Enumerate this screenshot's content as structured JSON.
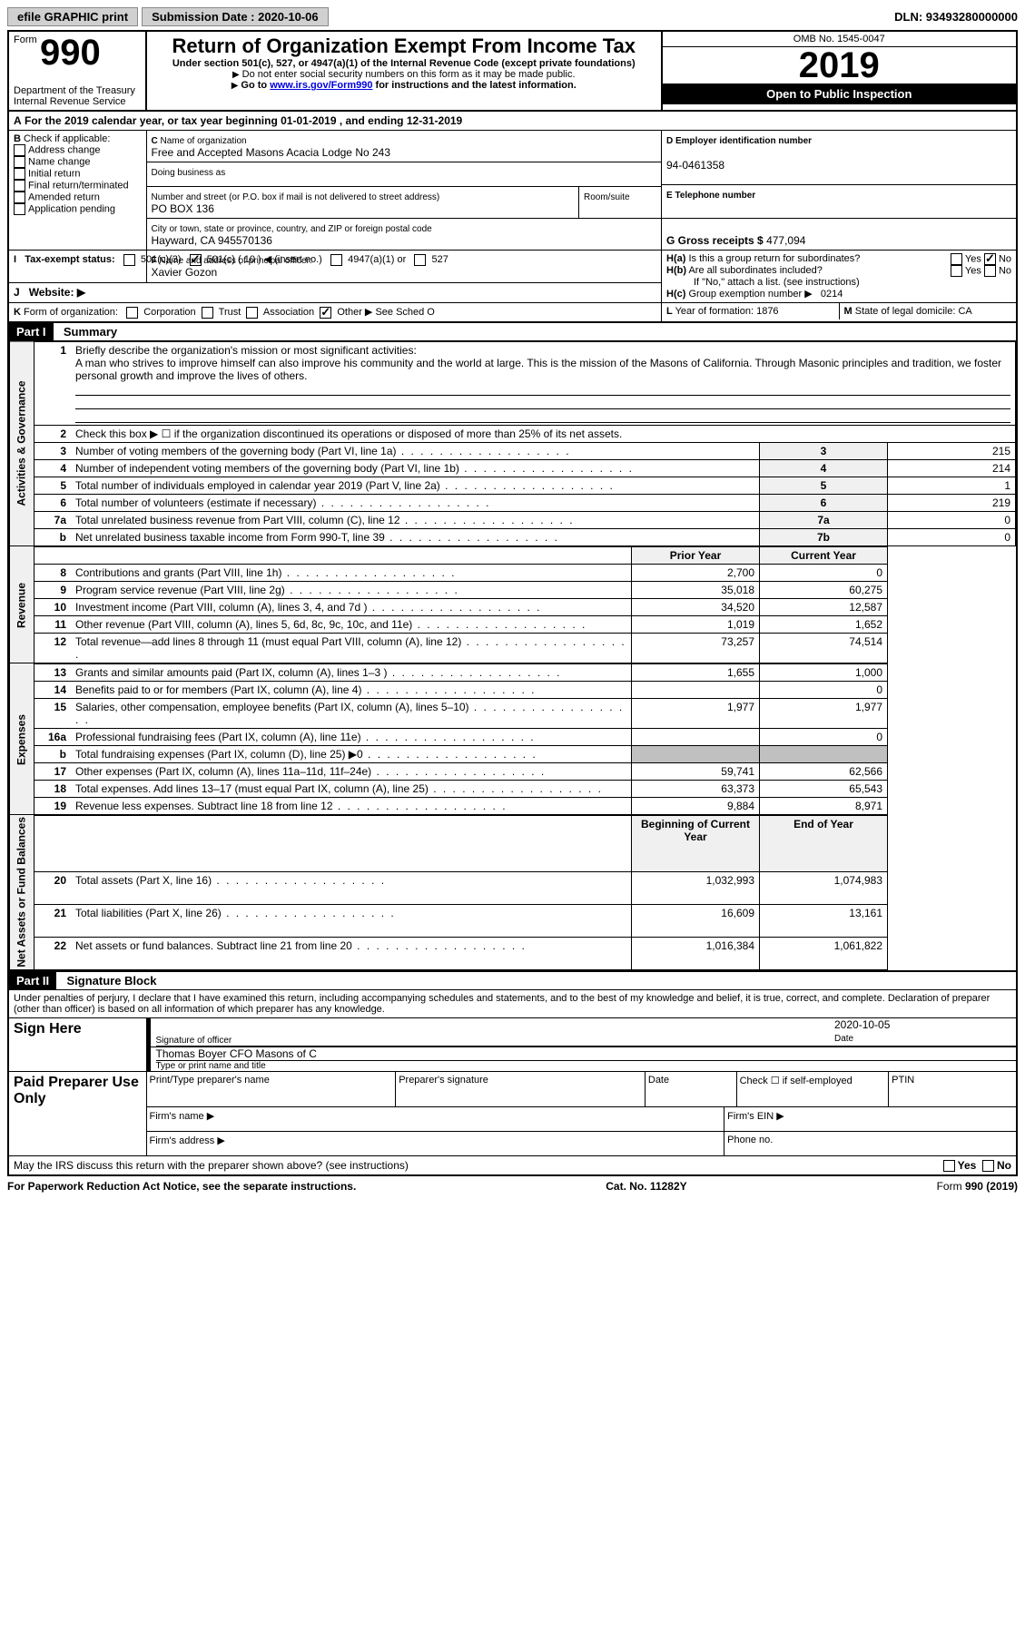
{
  "toolbar": {
    "efile": "efile GRAPHIC print",
    "submission_label": "Submission Date : 2020-10-06",
    "dln": "DLN: 93493280000000"
  },
  "header": {
    "form_prefix": "Form",
    "form_number": "990",
    "dept": "Department of the Treasury\nInternal Revenue Service",
    "title": "Return of Organization Exempt From Income Tax",
    "subtitle": "Under section 501(c), 527, or 4947(a)(1) of the Internal Revenue Code (except private foundations)",
    "note1": "Do not enter social security numbers on this form as it may be made public.",
    "note2_prefix": "Go to ",
    "note2_link": "www.irs.gov/Form990",
    "note2_suffix": " for instructions and the latest information.",
    "omb": "OMB No. 1545-0047",
    "year": "2019",
    "inspection": "Open to Public Inspection"
  },
  "periodA": "For the 2019 calendar year, or tax year beginning 01-01-2019   , and ending 12-31-2019",
  "boxB": {
    "label": "Check if applicable:",
    "items": [
      "Address change",
      "Name change",
      "Initial return",
      "Final return/terminated",
      "Amended return",
      "Application pending"
    ]
  },
  "boxC": {
    "label_name": "Name of organization",
    "name": "Free and Accepted Masons Acacia Lodge No 243",
    "dba_label": "Doing business as",
    "addr_label": "Number and street (or P.O. box if mail is not delivered to street address)",
    "room_label": "Room/suite",
    "addr": "PO BOX 136",
    "city_label": "City or town, state or province, country, and ZIP or foreign postal code",
    "city": "Hayward, CA  945570136"
  },
  "boxD": {
    "label": "D Employer identification number",
    "value": "94-0461358"
  },
  "boxE": {
    "label": "E Telephone number"
  },
  "boxG": {
    "label": "G Gross receipts $ ",
    "value": "477,094"
  },
  "boxF": {
    "label": "Name and address of principal officer:",
    "value": "Xavier Gozon"
  },
  "boxH": {
    "a": "Is this a group return for subordinates?",
    "b": "Are all subordinates included?",
    "b_note": "If \"No,\" attach a list. (see instructions)",
    "c_label": "Group exemption number",
    "c_value": "0214",
    "yes": "Yes",
    "no": "No"
  },
  "boxI": {
    "label": "Tax-exempt status:",
    "opts": [
      "501(c)(3)",
      "501(c) ( 10 )",
      "(insert no.)",
      "4947(a)(1) or",
      "527"
    ]
  },
  "boxJ": {
    "label": "Website:"
  },
  "boxK": {
    "label": "Form of organization:",
    "opts": [
      "Corporation",
      "Trust",
      "Association",
      "Other"
    ],
    "suffix": "See Sched O"
  },
  "boxL": {
    "label": "Year of formation: ",
    "value": "1876"
  },
  "boxM": {
    "label": "State of legal domicile: ",
    "value": "CA"
  },
  "part1": {
    "header": "Part I",
    "title": "Summary",
    "line1_label": "Briefly describe the organization's mission or most significant activities:",
    "mission": "A man who strives to improve himself can also improve his community and the world at large. This is the mission of the Masons of California. Through Masonic principles and tradition, we foster personal growth and improve the lives of others.",
    "line2": "Check this box ▶ ☐  if the organization discontinued its operations or disposed of more than 25% of its net assets.",
    "rows_gov": [
      {
        "n": "3",
        "desc": "Number of voting members of the governing body (Part VI, line 1a)",
        "box": "3",
        "v": "215"
      },
      {
        "n": "4",
        "desc": "Number of independent voting members of the governing body (Part VI, line 1b)",
        "box": "4",
        "v": "214"
      },
      {
        "n": "5",
        "desc": "Total number of individuals employed in calendar year 2019 (Part V, line 2a)",
        "box": "5",
        "v": "1"
      },
      {
        "n": "6",
        "desc": "Total number of volunteers (estimate if necessary)",
        "box": "6",
        "v": "219"
      },
      {
        "n": "7a",
        "desc": "Total unrelated business revenue from Part VIII, column (C), line 12",
        "box": "7a",
        "v": "0"
      },
      {
        "n": "b",
        "desc": "Net unrelated business taxable income from Form 990-T, line 39",
        "box": "7b",
        "v": "0"
      }
    ],
    "prior_label": "Prior Year",
    "current_label": "Current Year",
    "rows_rev": [
      {
        "n": "8",
        "desc": "Contributions and grants (Part VIII, line 1h)",
        "p": "2,700",
        "c": "0"
      },
      {
        "n": "9",
        "desc": "Program service revenue (Part VIII, line 2g)",
        "p": "35,018",
        "c": "60,275"
      },
      {
        "n": "10",
        "desc": "Investment income (Part VIII, column (A), lines 3, 4, and 7d )",
        "p": "34,520",
        "c": "12,587"
      },
      {
        "n": "11",
        "desc": "Other revenue (Part VIII, column (A), lines 5, 6d, 8c, 9c, 10c, and 11e)",
        "p": "1,019",
        "c": "1,652"
      },
      {
        "n": "12",
        "desc": "Total revenue—add lines 8 through 11 (must equal Part VIII, column (A), line 12)",
        "p": "73,257",
        "c": "74,514"
      }
    ],
    "rows_exp": [
      {
        "n": "13",
        "desc": "Grants and similar amounts paid (Part IX, column (A), lines 1–3 )",
        "p": "1,655",
        "c": "1,000"
      },
      {
        "n": "14",
        "desc": "Benefits paid to or for members (Part IX, column (A), line 4)",
        "p": "",
        "c": "0"
      },
      {
        "n": "15",
        "desc": "Salaries, other compensation, employee benefits (Part IX, column (A), lines 5–10)",
        "p": "1,977",
        "c": "1,977"
      },
      {
        "n": "16a",
        "desc": "Professional fundraising fees (Part IX, column (A), line 11e)",
        "p": "",
        "c": "0"
      },
      {
        "n": "b",
        "desc": "Total fundraising expenses (Part IX, column (D), line 25) ▶0",
        "p": "SHADED",
        "c": "SHADED"
      },
      {
        "n": "17",
        "desc": "Other expenses (Part IX, column (A), lines 11a–11d, 11f–24e)",
        "p": "59,741",
        "c": "62,566"
      },
      {
        "n": "18",
        "desc": "Total expenses. Add lines 13–17 (must equal Part IX, column (A), line 25)",
        "p": "63,373",
        "c": "65,543"
      },
      {
        "n": "19",
        "desc": "Revenue less expenses. Subtract line 18 from line 12",
        "p": "9,884",
        "c": "8,971"
      }
    ],
    "begin_label": "Beginning of Current Year",
    "end_label": "End of Year",
    "rows_net": [
      {
        "n": "20",
        "desc": "Total assets (Part X, line 16)",
        "p": "1,032,993",
        "c": "1,074,983"
      },
      {
        "n": "21",
        "desc": "Total liabilities (Part X, line 26)",
        "p": "16,609",
        "c": "13,161"
      },
      {
        "n": "22",
        "desc": "Net assets or fund balances. Subtract line 21 from line 20",
        "p": "1,016,384",
        "c": "1,061,822"
      }
    ],
    "vlabels": {
      "gov": "Activities & Governance",
      "rev": "Revenue",
      "exp": "Expenses",
      "net": "Net Assets or Fund Balances"
    }
  },
  "part2": {
    "header": "Part II",
    "title": "Signature Block",
    "penalties": "Under penalties of perjury, I declare that I have examined this return, including accompanying schedules and statements, and to the best of my knowledge and belief, it is true, correct, and complete. Declaration of preparer (other than officer) is based on all information of which preparer has any knowledge.",
    "sign_here": "Sign Here",
    "sig_officer": "Signature of officer",
    "date_label": "Date",
    "date_value": "2020-10-05",
    "typed_name": "Thomas Boyer  CFO Masons of C",
    "typed_label": "Type or print name and title",
    "paid": "Paid Preparer Use Only",
    "prep_name": "Print/Type preparer's name",
    "prep_sig": "Preparer's signature",
    "check_self": "Check ☐ if self-employed",
    "ptin": "PTIN",
    "firm_name": "Firm's name   ▶",
    "firm_ein": "Firm's EIN ▶",
    "firm_addr": "Firm's address ▶",
    "phone": "Phone no.",
    "discuss": "May the IRS discuss this return with the preparer shown above? (see instructions)"
  },
  "footer": {
    "paperwork": "For Paperwork Reduction Act Notice, see the separate instructions.",
    "cat": "Cat. No. 11282Y",
    "form": "Form 990 (2019)"
  }
}
